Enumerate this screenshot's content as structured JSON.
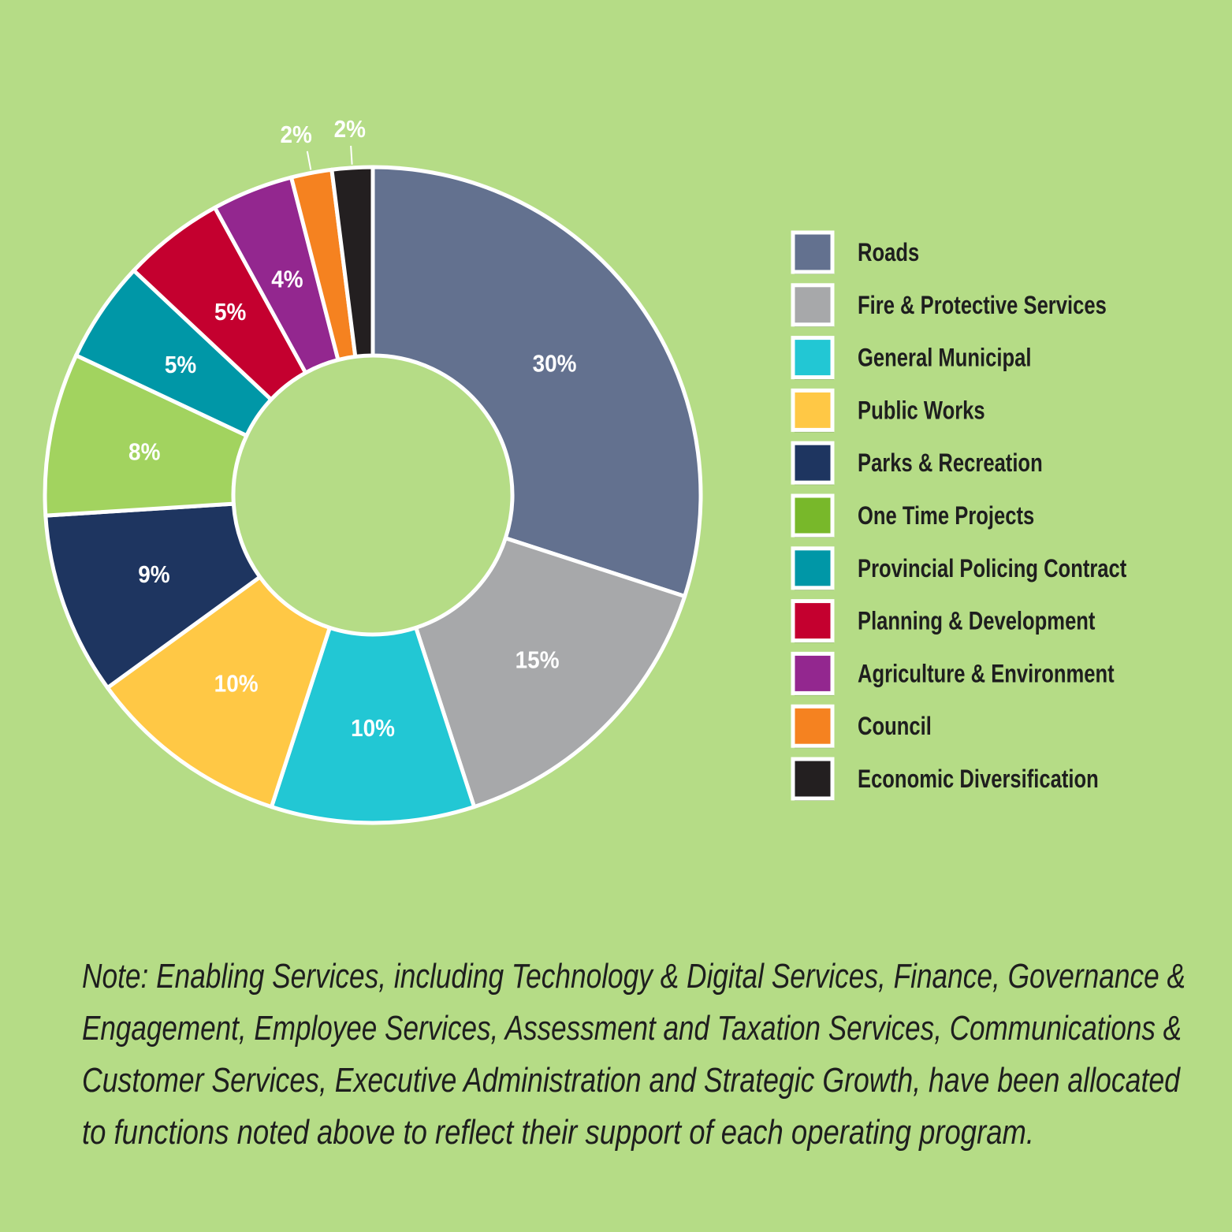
{
  "chart_data": {
    "type": "pie",
    "style": "donut",
    "categories": [
      "Roads",
      "Fire & Protective Services",
      "General Municipal",
      "Public Works",
      "Parks & Recreation",
      "One Time Projects",
      "Provincial Policing Contract",
      "Planning & Development",
      "Agriculture & Environment",
      "Council",
      "Economic Diversification"
    ],
    "values": [
      30,
      15,
      10,
      10,
      9,
      8,
      5,
      5,
      4,
      2,
      2
    ],
    "labels": [
      "30%",
      "15%",
      "10%",
      "10%",
      "9%",
      "8%",
      "5%",
      "5%",
      "4%",
      "2%",
      "2%"
    ],
    "colors": [
      "#63718f",
      "#a7a8aa",
      "#22c7d4",
      "#ffc845",
      "#1e3560",
      "#a2d35f",
      "#0097a7",
      "#c4002f",
      "#93278f",
      "#f58220",
      "#231f20"
    ],
    "legend_colors": [
      "#63718f",
      "#a7a8aa",
      "#22c7d4",
      "#ffc845",
      "#1e3560",
      "#78b82a",
      "#0097a7",
      "#c4002f",
      "#93278f",
      "#f58220",
      "#231f20"
    ],
    "legend_placement": "right"
  },
  "note_lines": [
    "Note: Enabling Services, including Technology & Digital Services, Finance, Governance &",
    "Engagement, Employee Services, Assessment and Taxation Services, Communications &",
    "Customer Services, Executive Administration and Strategic Growth, have been allocated",
    "to functions noted above to reflect their support of each operating program."
  ],
  "background": "#b5dc86"
}
